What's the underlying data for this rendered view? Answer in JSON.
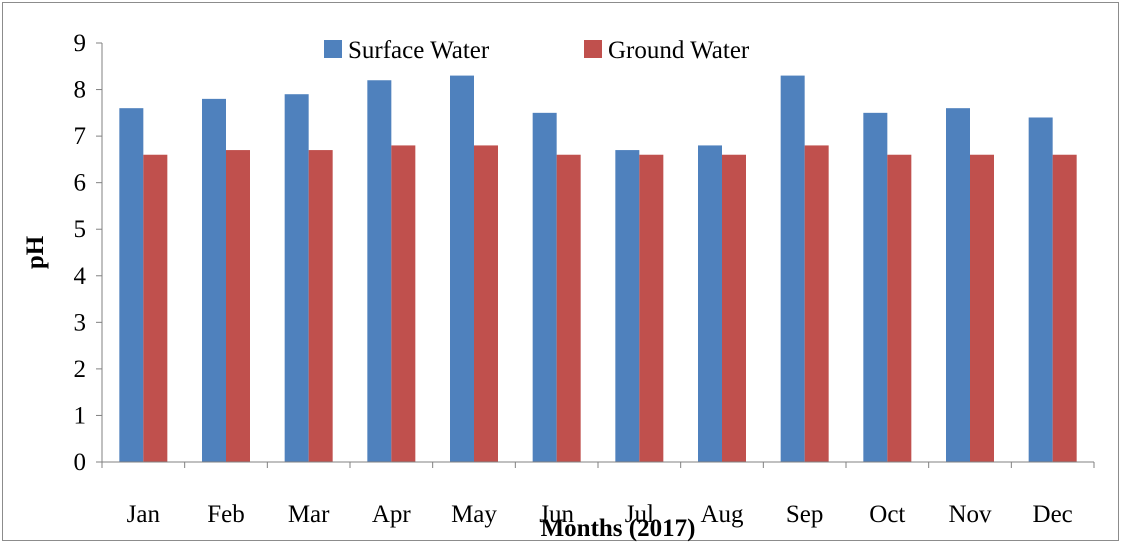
{
  "chart_data": {
    "type": "bar",
    "title": "",
    "xlabel": "Months (2017)",
    "ylabel": "pH",
    "ylim": [
      0,
      9
    ],
    "yticks": [
      "0",
      "1",
      "2",
      "3",
      "4",
      "5",
      "6",
      "7",
      "8",
      "9"
    ],
    "grid": false,
    "legend": "top-center",
    "categories": [
      "Jan",
      "Feb",
      "Mar",
      "Apr",
      "May",
      "Jun",
      "Jul",
      "Aug",
      "Sep",
      "Oct",
      "Nov",
      "Dec"
    ],
    "series": [
      {
        "name": "Surface Water",
        "color": "#4f81bd",
        "values": [
          7.6,
          7.8,
          7.9,
          8.2,
          8.3,
          7.5,
          6.7,
          6.8,
          8.3,
          7.5,
          7.6,
          7.4
        ]
      },
      {
        "name": "Ground Water",
        "color": "#c0504d",
        "values": [
          6.6,
          6.7,
          6.7,
          6.8,
          6.8,
          6.6,
          6.6,
          6.6,
          6.8,
          6.6,
          6.6,
          6.6
        ]
      }
    ]
  }
}
